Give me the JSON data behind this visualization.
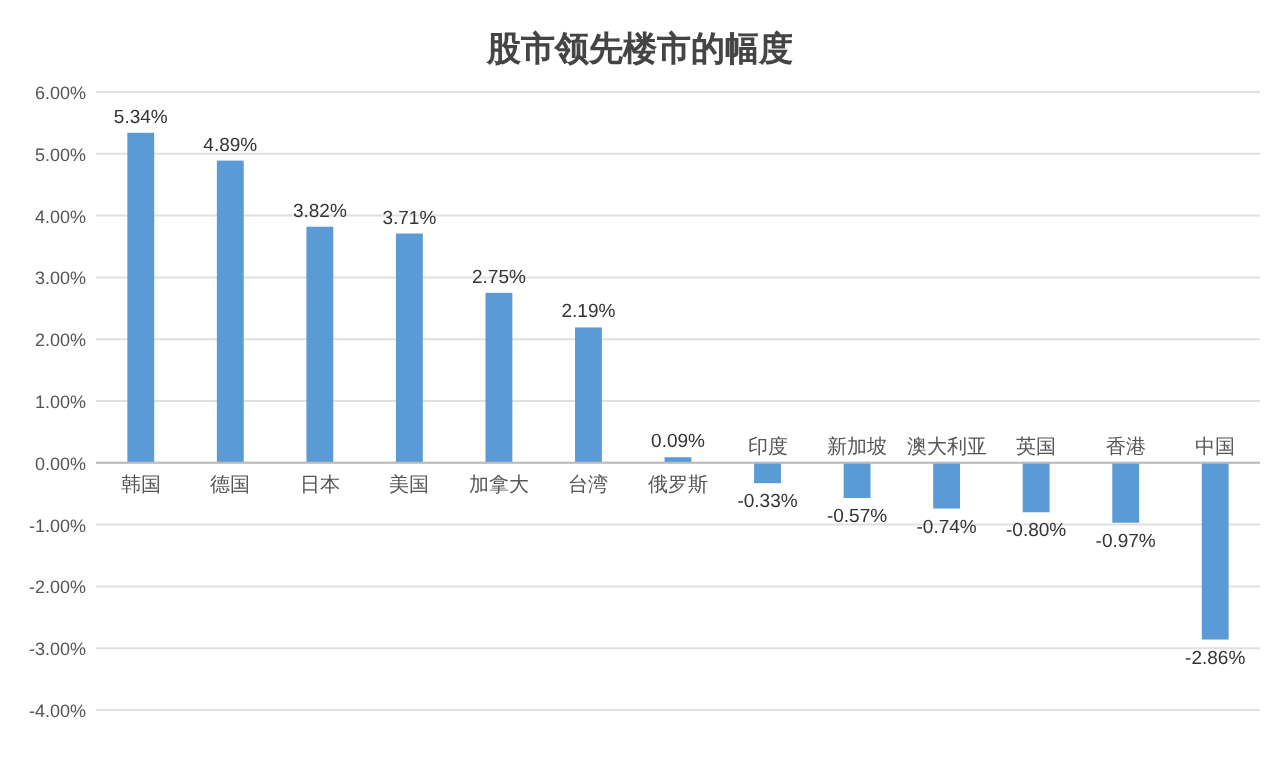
{
  "chart_data": {
    "type": "bar",
    "title": "股市领先楼市的幅度",
    "categories": [
      "韩国",
      "德国",
      "日本",
      "美国",
      "加拿大",
      "台湾",
      "俄罗斯",
      "印度",
      "新加坡",
      "澳大利亚",
      "英国",
      "香港",
      "中国"
    ],
    "values": [
      5.34,
      4.89,
      3.82,
      3.71,
      2.75,
      2.19,
      0.09,
      -0.33,
      -0.57,
      -0.74,
      -0.8,
      -0.97,
      -2.86
    ],
    "value_labels": [
      "5.34%",
      "4.89%",
      "3.82%",
      "3.71%",
      "2.75%",
      "2.19%",
      "0.09%",
      "-0.33%",
      "-0.57%",
      "-0.74%",
      "-0.80%",
      "-0.97%",
      "-2.86%"
    ],
    "color": "#5b9bd5",
    "ylim": [
      -4,
      6
    ],
    "yticks": [
      {
        "value": -4,
        "label": "-4.00%"
      },
      {
        "value": -3,
        "label": "-3.00%"
      },
      {
        "value": -2,
        "label": "-2.00%"
      },
      {
        "value": -1,
        "label": "-1.00%"
      },
      {
        "value": 0,
        "label": "0.00%"
      },
      {
        "value": 1,
        "label": "1.00%"
      },
      {
        "value": 2,
        "label": "2.00%"
      },
      {
        "value": 3,
        "label": "3.00%"
      },
      {
        "value": 4,
        "label": "4.00%"
      },
      {
        "value": 5,
        "label": "5.00%"
      },
      {
        "value": 6,
        "label": "6.00%"
      }
    ],
    "grid": "y"
  }
}
